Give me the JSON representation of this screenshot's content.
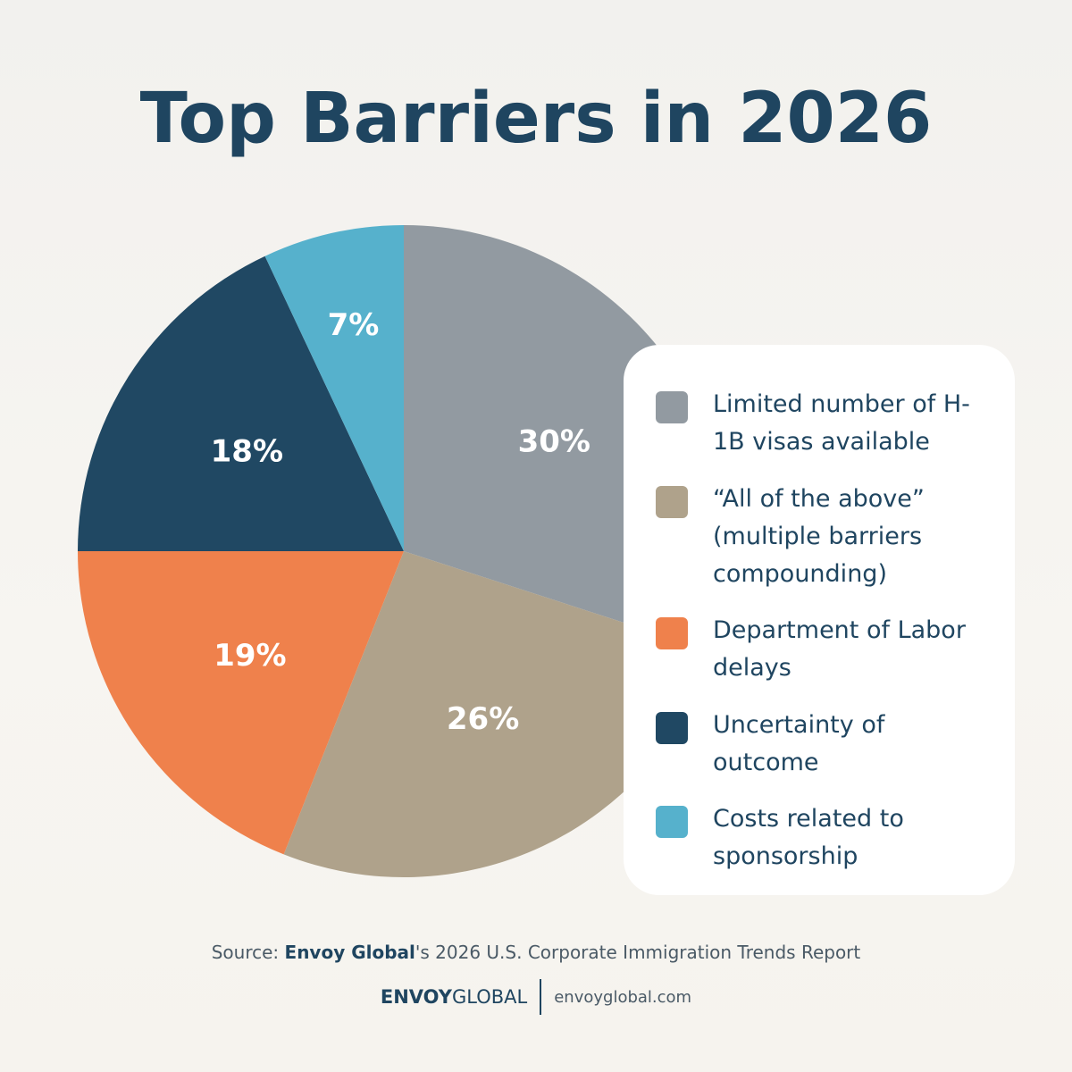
{
  "title": "Top Barriers in 2026",
  "chart_data": {
    "type": "pie",
    "title": "Top Barriers in 2026",
    "slices": [
      {
        "label": "Limited number of H-1B visas available",
        "value": 30,
        "display": "30%",
        "color": "#929aa1"
      },
      {
        "label": "“All of the above” (multiple barriers compounding)",
        "value": 26,
        "display": "26%",
        "color": "#afa28b"
      },
      {
        "label": "Department of Labor delays",
        "value": 19,
        "display": "19%",
        "color": "#ef814c"
      },
      {
        "label": "Uncertainty of outcome",
        "value": 18,
        "display": "18%",
        "color": "#204863"
      },
      {
        "label": "Costs related to sponsorship",
        "value": 7,
        "display": "7%",
        "color": "#56b1cc"
      }
    ],
    "legend_position": "right"
  },
  "legend": [
    {
      "label": "Limited number of H-1B visas available",
      "color": "#929aa1"
    },
    {
      "label": "“All of the above” (multiple barriers compounding)",
      "color": "#afa28b"
    },
    {
      "label": "Department of Labor delays",
      "color": "#ef814c"
    },
    {
      "label": "Uncertainty of outcome",
      "color": "#204863"
    },
    {
      "label": "Costs related to sponsorship",
      "color": "#56b1cc"
    }
  ],
  "source": {
    "prefix": "Source: ",
    "brand": "Envoy Global",
    "suffix": "'s 2026 U.S. Corporate Immigration Trends Report"
  },
  "footer": {
    "logo_bold": "ENVOY",
    "logo_light": "GLOBAL",
    "website": "envoyglobal.com"
  }
}
